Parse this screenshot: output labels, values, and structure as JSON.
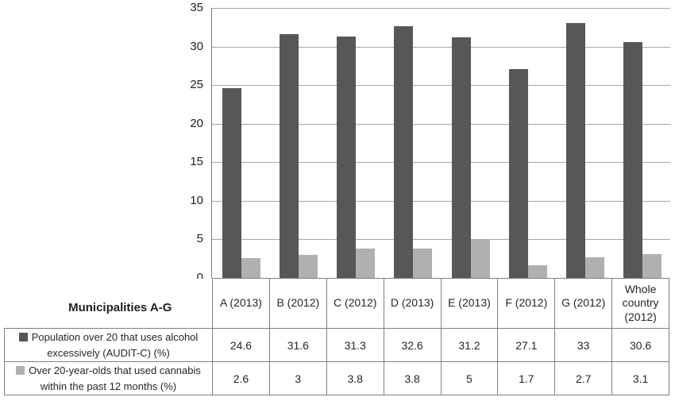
{
  "chart_data": {
    "type": "bar",
    "title": "",
    "xlabel": "",
    "ylabel": "",
    "categories": [
      "A (2013)",
      "B (2012)",
      "C (2012)",
      "D (2013)",
      "E (2013)",
      "F (2012)",
      "G (2012)",
      "Whole country (2012)"
    ],
    "series": [
      {
        "name": "Population over 20 that uses alcohol excessively (AUDIT-C) (%)",
        "color": "#575757",
        "values": [
          24.6,
          31.6,
          31.3,
          32.6,
          31.2,
          27.1,
          33,
          30.6
        ]
      },
      {
        "name": "Over 20-year-olds that used cannabis within the past 12 months (%)",
        "color": "#b0b0b0",
        "values": [
          2.6,
          3,
          3.8,
          3.8,
          5,
          1.7,
          2.7,
          3.1
        ]
      }
    ],
    "ylim": [
      0,
      35
    ],
    "yticks": [
      0,
      5,
      10,
      15,
      20,
      25,
      30,
      35
    ],
    "grid": true,
    "legend_position": "table-left"
  },
  "table": {
    "corner_label": "Municipalities A-G",
    "column_headers": [
      "A (2013)",
      "B (2012)",
      "C (2012)",
      "D (2013)",
      "E (2013)",
      "F (2012)",
      "G (2012)",
      "Whole country (2012)"
    ],
    "rows": [
      {
        "label": "Population over 20 that uses alcohol excessively (AUDIT-C) (%)",
        "marker_color": "#575757",
        "values": [
          "24.6",
          "31.6",
          "31.3",
          "32.6",
          "31.2",
          "27.1",
          "33",
          "30.6"
        ]
      },
      {
        "label": "Over 20-year-olds that used cannabis within the past 12 months (%)",
        "marker_color": "#b0b0b0",
        "values": [
          "2.6",
          "3",
          "3.8",
          "3.8",
          "5",
          "1.7",
          "2.7",
          "3.1"
        ]
      }
    ]
  },
  "colors": {
    "grid_line": "#a6a6a6",
    "axis_line": "#808080",
    "table_border": "#808080",
    "text": "#262626",
    "background": "#ffffff"
  }
}
